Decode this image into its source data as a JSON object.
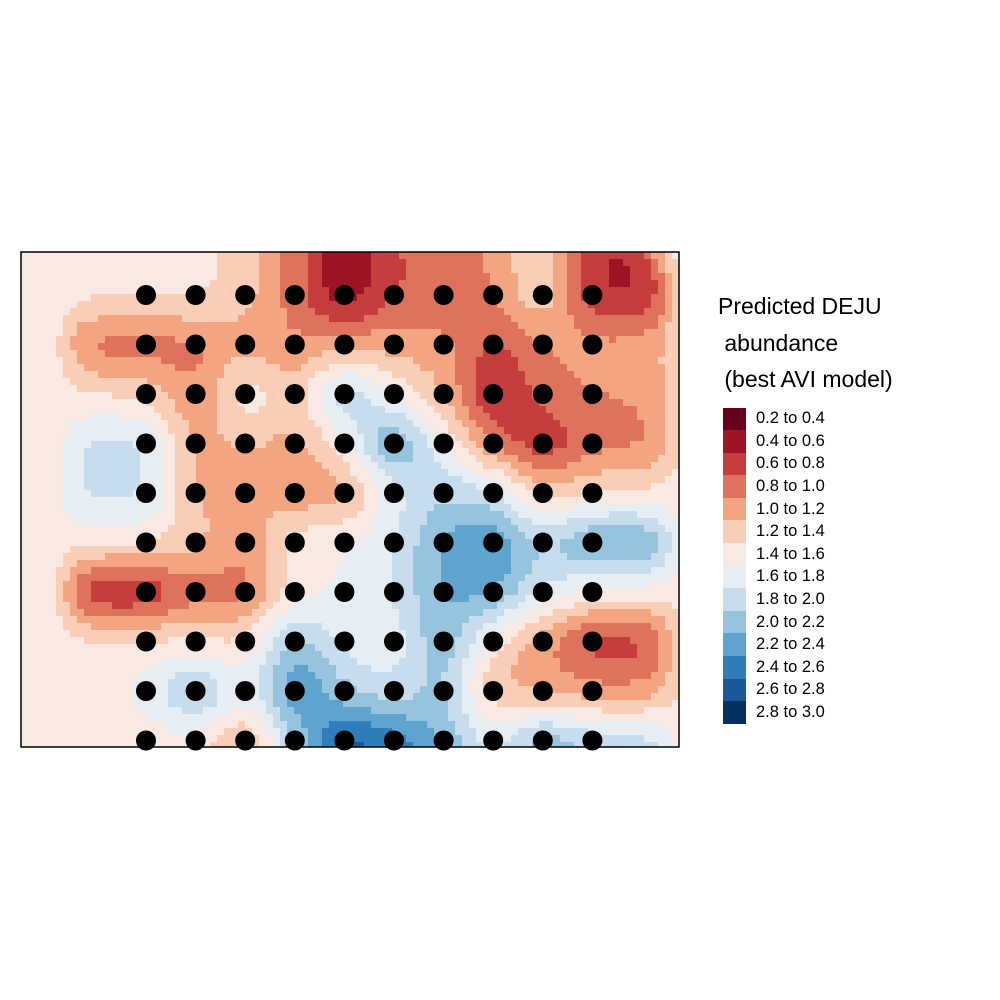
{
  "chart_data": {
    "type": "heatmap",
    "title": "",
    "legend": {
      "title_lines": [
        "Predicted DEJU",
        " abundance",
        " (best AVI model)"
      ],
      "placement": "right",
      "classes": [
        {
          "label": "0.2 to 0.4",
          "range": [
            0.2,
            0.4
          ],
          "color": "#67001f"
        },
        {
          "label": "0.4 to 0.6",
          "range": [
            0.4,
            0.6
          ],
          "color": "#9e1427"
        },
        {
          "label": "0.6 to 0.8",
          "range": [
            0.6,
            0.8
          ],
          "color": "#c53e3d"
        },
        {
          "label": "0.8 to 1.0",
          "range": [
            0.8,
            1.0
          ],
          "color": "#de725c"
        },
        {
          "label": "1.0 to 1.2",
          "range": [
            1.0,
            1.2
          ],
          "color": "#f3a481"
        },
        {
          "label": "1.2 to 1.4",
          "range": [
            1.2,
            1.4
          ],
          "color": "#f9cdb6"
        },
        {
          "label": "1.4 to 1.6",
          "range": [
            1.4,
            1.6
          ],
          "color": "#f8e9e2"
        },
        {
          "label": "1.6 to 1.8",
          "range": [
            1.6,
            1.8
          ],
          "color": "#e7eef3"
        },
        {
          "label": "1.8 to 2.0",
          "range": [
            1.8,
            2.0
          ],
          "color": "#c7dcec"
        },
        {
          "label": "2.0 to 2.2",
          "range": [
            2.0,
            2.2
          ],
          "color": "#96c4de"
        },
        {
          "label": "2.2 to 2.4",
          "range": [
            2.2,
            2.4
          ],
          "color": "#5fa3cf"
        },
        {
          "label": "2.4 to 2.6",
          "range": [
            2.4,
            2.6
          ],
          "color": "#2f7eb9"
        },
        {
          "label": "2.6 to 2.8",
          "range": [
            2.6,
            2.8
          ],
          "color": "#1a5899"
        },
        {
          "label": "2.8 to 3.0",
          "range": [
            2.8,
            3.0
          ],
          "color": "#053061"
        }
      ]
    },
    "background_value": 1.5,
    "grid": {
      "columns": 10,
      "rows": 10
    },
    "sites": [
      [
        1.5,
        1.5,
        1.3,
        0.9,
        0.3,
        0.8,
        0.8,
        1.0,
        1.5,
        0.5
      ],
      [
        0.8,
        0.9,
        1.1,
        1.0,
        1.1,
        1.1,
        1.1,
        0.7,
        1.0,
        1.1
      ],
      [
        1.4,
        0.9,
        1.7,
        1.2,
        2.2,
        1.5,
        1.2,
        0.4,
        0.9,
        1.0
      ],
      [
        1.9,
        1.1,
        1.2,
        1.1,
        1.5,
        2.5,
        1.6,
        0.9,
        0.5,
        0.9
      ],
      [
        1.9,
        1.1,
        1.2,
        1.0,
        1.0,
        1.7,
        2.0,
        1.9,
        1.2,
        1.4
      ],
      [
        1.5,
        1.3,
        1.0,
        1.6,
        1.6,
        1.8,
        2.3,
        2.5,
        2.0,
        2.4
      ],
      [
        0.4,
        0.9,
        0.8,
        1.5,
        1.6,
        1.8,
        2.3,
        2.3,
        1.8,
        1.5
      ],
      [
        1.5,
        1.4,
        1.4,
        2.2,
        1.7,
        1.6,
        2.3,
        1.4,
        1.0,
        0.6
      ],
      [
        1.6,
        2.3,
        1.6,
        2.6,
        2.0,
        1.8,
        2.1,
        1.1,
        1.1,
        1.0
      ],
      [
        1.5,
        1.5,
        1.0,
        2.0,
        2.8,
        2.6,
        2.2,
        1.7,
        2.3,
        2.0
      ]
    ]
  }
}
